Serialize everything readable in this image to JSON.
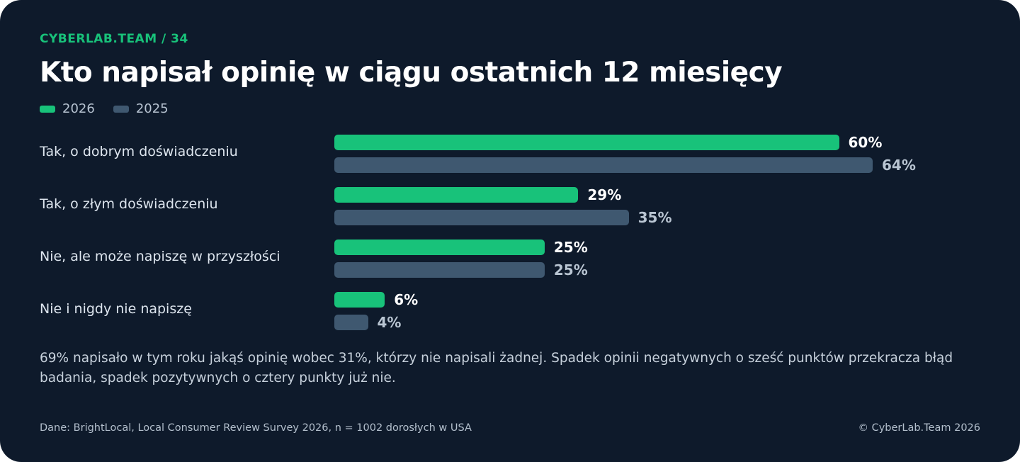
{
  "kicker": "CYBERLAB.TEAM / 34",
  "title": "Kto napisał opinię w ciągu ostatnich 12 miesięcy",
  "note": "69% napisało w tym roku jakąś opinię wobec 31%, którzy nie napisali żadnej. Spadek opinii negatywnych o sześć punktów przekracza błąd badania, spadek pozytywnych o cztery punkty już nie.",
  "footer": {
    "source": "Dane: BrightLocal, Local Consumer Review Survey 2026, n = 1002 dorosłych w USA",
    "copyright": "© CyberLab.Team  2026"
  },
  "colors": {
    "series_2026": "#18c27a",
    "series_2025": "#3f5870",
    "value_2026": "#ffffff",
    "value_2025": "#b9c5d2",
    "background": "#0e1a2b",
    "accent": "#18c27a"
  },
  "chart_data": {
    "type": "bar",
    "orientation": "horizontal",
    "title": "Kto napisał opinię w ciągu ostatnich 12 miesięcy",
    "categories": [
      "Tak, o dobrym doświadczeniu",
      "Tak, o złym doświadczeniu",
      "Nie, ale może napiszę w przyszłości",
      "Nie i nigdy nie napiszę"
    ],
    "series": [
      {
        "name": "2026",
        "values": [
          60,
          29,
          25,
          6
        ],
        "labels": [
          "60%",
          "29%",
          "25%",
          "6%"
        ]
      },
      {
        "name": "2025",
        "values": [
          64,
          35,
          25,
          4
        ],
        "labels": [
          "64%",
          "35%",
          "25%",
          "4%"
        ]
      }
    ],
    "unit": "%",
    "xlim": [
      0,
      64
    ],
    "grid": false,
    "legend": "top-left"
  }
}
